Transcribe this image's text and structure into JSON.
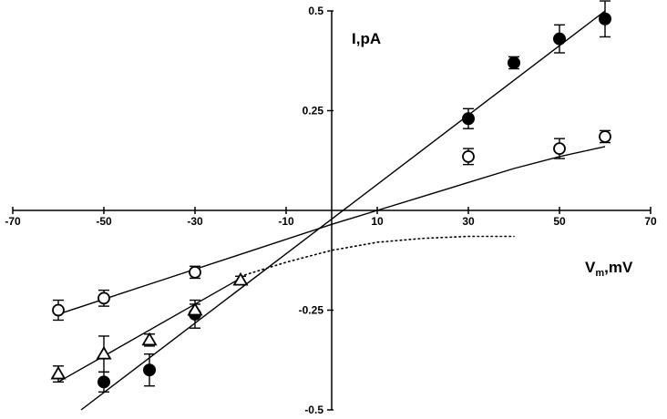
{
  "chart_data": {
    "type": "scatter",
    "title": "",
    "xlabel": "V",
    "xlabel_sub": "m",
    "xlabel_unit": ",mV",
    "ylabel": "I,pA",
    "xlim": [
      -70,
      70
    ],
    "ylim": [
      -0.5,
      0.5
    ],
    "grid": false,
    "legend": "none",
    "axes_cross_at_origin": true,
    "x_ticks": [
      -70,
      -50,
      -30,
      -10,
      10,
      30,
      50,
      70
    ],
    "x_tick_labels": [
      "-70",
      "-50",
      "-30",
      "-10",
      "10",
      "30",
      "50",
      "70"
    ],
    "y_ticks": [
      0.5,
      0.25,
      -0.25,
      -0.5
    ],
    "y_tick_labels": [
      "0.5",
      "0.25",
      "-0.25",
      "-0.5"
    ],
    "series": [
      {
        "marker": "filled-circle",
        "color": "#000000",
        "points": [
          {
            "x": -50,
            "y": -0.43,
            "err": 0.025
          },
          {
            "x": -40,
            "y": -0.4,
            "err": 0.04
          },
          {
            "x": -30,
            "y": -0.26,
            "err": 0.035
          },
          {
            "x": 30,
            "y": 0.23,
            "err": 0.025
          },
          {
            "x": 40,
            "y": 0.37,
            "err": 0.015
          },
          {
            "x": 50,
            "y": 0.43,
            "err": 0.035
          },
          {
            "x": 60,
            "y": 0.48,
            "err": 0.045
          }
        ],
        "fit": {
          "style": "solid",
          "points": [
            [
              -55,
              -0.5
            ],
            [
              60,
              0.5
            ]
          ]
        }
      },
      {
        "marker": "open-circle",
        "color": "#000000",
        "points": [
          {
            "x": -60,
            "y": -0.25,
            "err": 0.025
          },
          {
            "x": -50,
            "y": -0.22,
            "err": 0.02
          },
          {
            "x": -30,
            "y": -0.155,
            "err": 0.015
          },
          {
            "x": 30,
            "y": 0.135,
            "err": 0.02
          },
          {
            "x": 50,
            "y": 0.155,
            "err": 0.025
          },
          {
            "x": 60,
            "y": 0.185,
            "err": 0.015
          }
        ],
        "fit": {
          "style": "solid",
          "points": [
            [
              -60,
              -0.26
            ],
            [
              -40,
              -0.185
            ],
            [
              -20,
              -0.11
            ],
            [
              0,
              -0.035
            ],
            [
              10,
              0.0
            ],
            [
              20,
              0.035
            ],
            [
              30,
              0.07
            ],
            [
              40,
              0.105
            ],
            [
              50,
              0.135
            ],
            [
              60,
              0.16
            ]
          ]
        }
      },
      {
        "marker": "open-triangle",
        "color": "#000000",
        "points": [
          {
            "x": -60,
            "y": -0.41,
            "err": 0.02
          },
          {
            "x": -50,
            "y": -0.36,
            "err": 0.045
          },
          {
            "x": -40,
            "y": -0.325,
            "err": 0.015
          },
          {
            "x": -30,
            "y": -0.25,
            "err": 0.015
          },
          {
            "x": -20,
            "y": -0.175,
            "err": 0.01
          }
        ],
        "fit": {
          "style": "solid",
          "points": [
            [
              -60,
              -0.43
            ],
            [
              -20,
              -0.17
            ]
          ]
        },
        "extension": {
          "style": "dotted",
          "points": [
            [
              -20,
              -0.165
            ],
            [
              -10,
              -0.13
            ],
            [
              0,
              -0.1
            ],
            [
              10,
              -0.08
            ],
            [
              20,
              -0.07
            ],
            [
              30,
              -0.065
            ],
            [
              40,
              -0.065
            ]
          ]
        }
      }
    ]
  }
}
